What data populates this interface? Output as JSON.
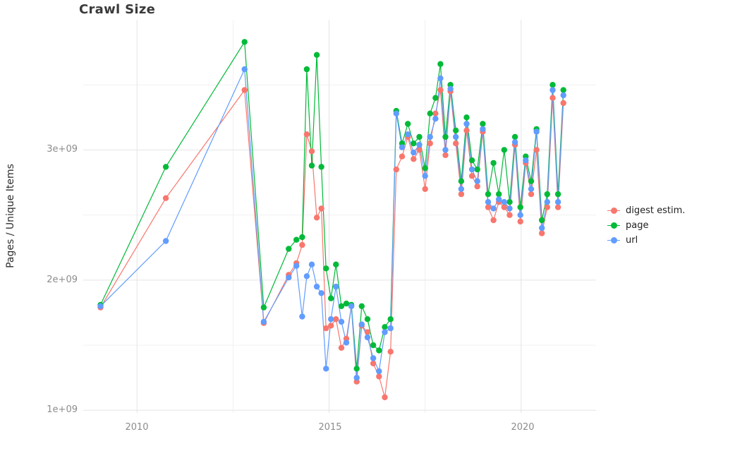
{
  "title": "Crawl Size",
  "ylabel": "Pages / Unique Items",
  "axes": {
    "y_ticks": [
      {
        "label": "1e+09",
        "value": 1000000000.0
      },
      {
        "label": "2e+09",
        "value": 2000000000.0
      },
      {
        "label": "3e+09",
        "value": 3000000000.0
      }
    ],
    "x_ticks": [
      {
        "label": "2010",
        "value": 2010
      },
      {
        "label": "2015",
        "value": 2015
      },
      {
        "label": "2020",
        "value": 2020
      }
    ]
  },
  "chart_data": {
    "type": "line",
    "title": "Crawl Size",
    "xlabel": "",
    "ylabel": "Pages / Unique Items",
    "x_range": [
      2008.6,
      2021.95
    ],
    "y_range": [
      980000000.0,
      4000000000.0
    ],
    "legend_position": "right",
    "grid": true,
    "point_style": "filled-circle",
    "grid_lines": {
      "major_x": [
        2010,
        2015,
        2020
      ],
      "minor_x": [
        2012.5,
        2017.5
      ],
      "major_y": [
        1000000000.0,
        2000000000.0,
        3000000000.0
      ],
      "minor_y": [
        1500000000.0,
        2500000000.0,
        3500000000.0
      ],
      "major_color": "#e4e4e4",
      "minor_color": "#f1f1f1"
    },
    "x": [
      2009.05,
      2010.75,
      2012.8,
      2013.3,
      2013.95,
      2014.15,
      2014.3,
      2014.42,
      2014.55,
      2014.68,
      2014.8,
      2014.92,
      2015.05,
      2015.18,
      2015.32,
      2015.45,
      2015.58,
      2015.72,
      2015.85,
      2016.0,
      2016.15,
      2016.3,
      2016.45,
      2016.6,
      2016.75,
      2016.9,
      2017.05,
      2017.2,
      2017.35,
      2017.5,
      2017.63,
      2017.77,
      2017.9,
      2018.03,
      2018.16,
      2018.3,
      2018.44,
      2018.58,
      2018.72,
      2018.86,
      2019.0,
      2019.14,
      2019.28,
      2019.42,
      2019.56,
      2019.7,
      2019.84,
      2019.98,
      2020.12,
      2020.26,
      2020.4,
      2020.54,
      2020.68,
      2020.82,
      2020.96,
      2021.1
    ],
    "series": [
      {
        "name": "digest estim.",
        "color": "#F8766D",
        "values": [
          1790000000.0,
          2630000000.0,
          3460000000.0,
          1670000000.0,
          2040000000.0,
          2130000000.0,
          2270000000.0,
          3120000000.0,
          2990000000.0,
          2480000000.0,
          2550000000.0,
          1630000000.0,
          1650000000.0,
          1700000000.0,
          1480000000.0,
          1550000000.0,
          1800000000.0,
          1220000000.0,
          1650000000.0,
          1600000000.0,
          1360000000.0,
          1260000000.0,
          1100000000.0,
          1450000000.0,
          2850000000.0,
          2950000000.0,
          3100000000.0,
          2930000000.0,
          3000000000.0,
          2700000000.0,
          3050000000.0,
          3280000000.0,
          3460000000.0,
          2960000000.0,
          3450000000.0,
          3050000000.0,
          2660000000.0,
          3150000000.0,
          2800000000.0,
          2720000000.0,
          3140000000.0,
          2560000000.0,
          2460000000.0,
          2600000000.0,
          2560000000.0,
          2500000000.0,
          3040000000.0,
          2450000000.0,
          2900000000.0,
          2660000000.0,
          3000000000.0,
          2360000000.0,
          2560000000.0,
          3400000000.0,
          2560000000.0,
          3360000000.0
        ]
      },
      {
        "name": "page",
        "color": "#00BA38",
        "values": [
          1810000000.0,
          2870000000.0,
          3830000000.0,
          1790000000.0,
          2240000000.0,
          2310000000.0,
          2330000000.0,
          3620000000.0,
          2880000000.0,
          3730000000.0,
          2870000000.0,
          2090000000.0,
          1860000000.0,
          2120000000.0,
          1800000000.0,
          1820000000.0,
          1810000000.0,
          1320000000.0,
          1800000000.0,
          1700000000.0,
          1500000000.0,
          1460000000.0,
          1640000000.0,
          1700000000.0,
          3300000000.0,
          3050000000.0,
          3200000000.0,
          3050000000.0,
          3100000000.0,
          2860000000.0,
          3280000000.0,
          3400000000.0,
          3660000000.0,
          3100000000.0,
          3500000000.0,
          3150000000.0,
          2760000000.0,
          3250000000.0,
          2920000000.0,
          2850000000.0,
          3200000000.0,
          2660000000.0,
          2900000000.0,
          2660000000.0,
          3000000000.0,
          2600000000.0,
          3100000000.0,
          2560000000.0,
          2950000000.0,
          2760000000.0,
          3160000000.0,
          2460000000.0,
          2660000000.0,
          3500000000.0,
          2660000000.0,
          3460000000.0
        ]
      },
      {
        "name": "url",
        "color": "#619CFF",
        "values": [
          1800000000.0,
          2300000000.0,
          3620000000.0,
          1680000000.0,
          2020000000.0,
          2110000000.0,
          1720000000.0,
          2030000000.0,
          2120000000.0,
          1950000000.0,
          1900000000.0,
          1320000000.0,
          1700000000.0,
          1950000000.0,
          1680000000.0,
          1520000000.0,
          1800000000.0,
          1250000000.0,
          1660000000.0,
          1560000000.0,
          1400000000.0,
          1300000000.0,
          1600000000.0,
          1630000000.0,
          3280000000.0,
          3020000000.0,
          3120000000.0,
          2980000000.0,
          3040000000.0,
          2800000000.0,
          3100000000.0,
          3240000000.0,
          3550000000.0,
          3000000000.0,
          3470000000.0,
          3100000000.0,
          2700000000.0,
          3200000000.0,
          2850000000.0,
          2760000000.0,
          3160000000.0,
          2600000000.0,
          2550000000.0,
          2620000000.0,
          2600000000.0,
          2550000000.0,
          3060000000.0,
          2500000000.0,
          2920000000.0,
          2700000000.0,
          3140000000.0,
          2400000000.0,
          2600000000.0,
          3460000000.0,
          2600000000.0,
          3420000000.0
        ]
      }
    ]
  }
}
